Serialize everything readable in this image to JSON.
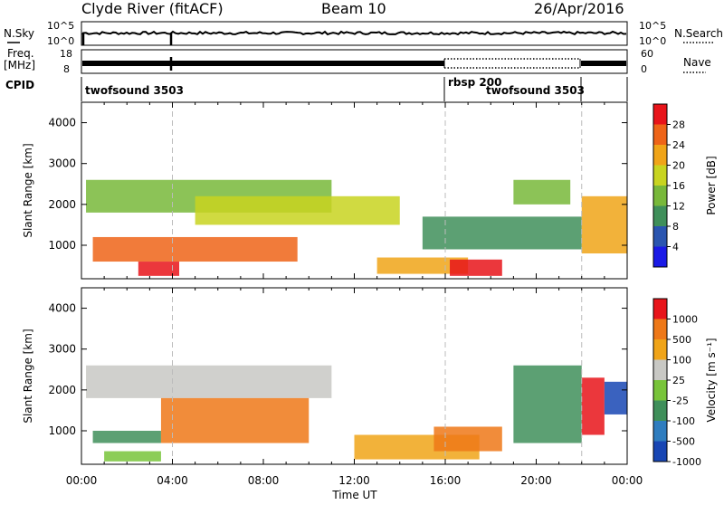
{
  "header": {
    "station": "Clyde River (fitACF)",
    "beam": "Beam 10",
    "date": "26/Apr/2016"
  },
  "top_strip": {
    "nsky_label": "N.Sky",
    "nsky_ticks": [
      "10^5",
      "10^0"
    ],
    "nsearch_label": "N.Search",
    "nsearch_ticks": [
      "10^5",
      "10^0"
    ],
    "freq_label": "Freq.",
    "freq_unit": "[MHz]",
    "freq_ticks": [
      "18",
      "8"
    ],
    "nave_label": "Nave",
    "nave_ticks": [
      "60",
      "0"
    ],
    "cpid_label": "CPID",
    "cpid_segments": [
      {
        "name": "twofsound 3503"
      },
      {
        "name": "rbsp 200"
      },
      {
        "name": "twofsound 3503"
      }
    ]
  },
  "chart_data": [
    {
      "type": "heatmap",
      "ylabel": "Slant Range [km]",
      "colorbar_label": "Power [dB]",
      "colorbar_ticks": [
        "28",
        "24",
        "20",
        "16",
        "12",
        "8",
        "4"
      ],
      "colors": [
        "#1a1ae6",
        "#2a55b0",
        "#3f8f5a",
        "#78b83a",
        "#c8d420",
        "#f0a418",
        "#ee6418",
        "#e8141a"
      ],
      "x": [
        "00:00",
        "04:00",
        "08:00",
        "12:00",
        "16:00",
        "20:00",
        "00:00"
      ],
      "xlim_hours": [
        0,
        24
      ],
      "ylim": [
        180,
        4500
      ],
      "y_ticks": [
        1000,
        2000,
        3000,
        4000
      ],
      "bands": [
        {
          "t0": 0.5,
          "t1": 9.5,
          "r0": 600,
          "r1": 1200,
          "level": 6
        },
        {
          "t0": 2.5,
          "t1": 4.3,
          "r0": 250,
          "r1": 600,
          "level": 7
        },
        {
          "t0": 0.2,
          "t1": 11.0,
          "r0": 1800,
          "r1": 2600,
          "level": 3
        },
        {
          "t0": 5.0,
          "t1": 14.0,
          "r0": 1500,
          "r1": 2200,
          "level": 4
        },
        {
          "t0": 13.0,
          "t1": 17.0,
          "r0": 300,
          "r1": 700,
          "level": 5
        },
        {
          "t0": 16.2,
          "t1": 18.5,
          "r0": 250,
          "r1": 650,
          "level": 7
        },
        {
          "t0": 15.0,
          "t1": 22.0,
          "r0": 900,
          "r1": 1700,
          "level": 2
        },
        {
          "t0": 19.0,
          "t1": 21.5,
          "r0": 2000,
          "r1": 2600,
          "level": 3
        },
        {
          "t0": 22.0,
          "t1": 24.0,
          "r0": 800,
          "r1": 2200,
          "level": 5
        }
      ]
    },
    {
      "type": "heatmap",
      "ylabel": "Slant Range [km]",
      "colorbar_label": "Velocity [m s⁻¹]",
      "colorbar_ticks": [
        "1000",
        "500",
        "100",
        "25",
        "-25",
        "-100",
        "-500",
        "-1000"
      ],
      "colors": [
        "#1846b4",
        "#2f7dbf",
        "#3f8f5a",
        "#78c43a",
        "#c8c8c4",
        "#f0a418",
        "#ee7818",
        "#e8141a"
      ],
      "x": [
        "00:00",
        "04:00",
        "08:00",
        "12:00",
        "16:00",
        "20:00",
        "00:00"
      ],
      "xlabel": "Time UT",
      "xlim_hours": [
        0,
        24
      ],
      "ylim": [
        180,
        4500
      ],
      "y_ticks": [
        1000,
        2000,
        3000,
        4000
      ],
      "bands": [
        {
          "t0": 0.2,
          "t1": 11.0,
          "r0": 1800,
          "r1": 2600,
          "level": 4
        },
        {
          "t0": 0.5,
          "t1": 3.5,
          "r0": 700,
          "r1": 1000,
          "level": 2
        },
        {
          "t0": 3.5,
          "t1": 10.0,
          "r0": 700,
          "r1": 1800,
          "level": 6
        },
        {
          "t0": 1.0,
          "t1": 3.5,
          "r0": 250,
          "r1": 500,
          "level": 3
        },
        {
          "t0": 12.0,
          "t1": 17.5,
          "r0": 300,
          "r1": 900,
          "level": 5
        },
        {
          "t0": 15.5,
          "t1": 18.5,
          "r0": 500,
          "r1": 1100,
          "level": 6
        },
        {
          "t0": 19.0,
          "t1": 22.0,
          "r0": 700,
          "r1": 2600,
          "level": 2
        },
        {
          "t0": 22.0,
          "t1": 23.0,
          "r0": 900,
          "r1": 2300,
          "level": 7
        },
        {
          "t0": 23.0,
          "t1": 24.0,
          "r0": 1400,
          "r1": 2200,
          "level": 0
        }
      ]
    }
  ]
}
